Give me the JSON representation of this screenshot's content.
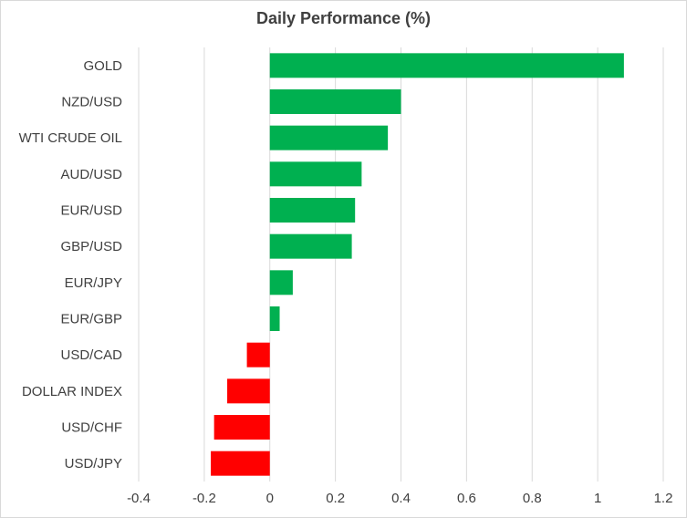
{
  "chart_data": {
    "type": "bar",
    "orientation": "horizontal",
    "title": "Daily Performance (%)",
    "xlabel": "",
    "ylabel": "",
    "categories": [
      "GOLD",
      "NZD/USD",
      "WTI CRUDE OIL",
      "AUD/USD",
      "EUR/USD",
      "GBP/USD",
      "EUR/JPY",
      "EUR/GBP",
      "USD/CAD",
      "DOLLAR INDEX",
      "USD/CHF",
      "USD/JPY"
    ],
    "values": [
      1.08,
      0.4,
      0.36,
      0.28,
      0.26,
      0.25,
      0.07,
      0.03,
      -0.07,
      -0.13,
      -0.17,
      -0.18
    ],
    "xlim": [
      -0.4,
      1.2
    ],
    "x_ticks": [
      -0.4,
      -0.2,
      0,
      0.2,
      0.4,
      0.6,
      0.8,
      1,
      1.2
    ],
    "x_tick_labels": [
      "-0.4",
      "-0.2",
      "0",
      "0.2",
      "0.4",
      "0.6",
      "0.8",
      "1",
      "1.2"
    ],
    "grid": "vertical",
    "legend": "none",
    "colors": {
      "positive": "#00b050",
      "negative": "#ff0000",
      "grid": "#d9d9d9",
      "text": "#404040"
    }
  }
}
